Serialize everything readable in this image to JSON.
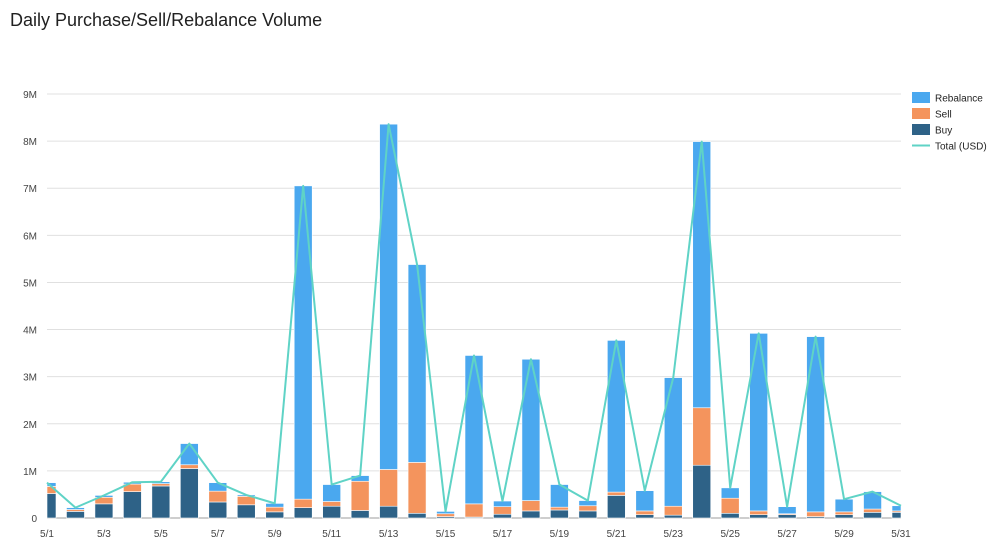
{
  "chart_data": {
    "type": "bar",
    "title": "Daily Purchase/Sell/Rebalance Volume",
    "xlabel": "",
    "ylabel": "",
    "stacked": true,
    "ylim": [
      0,
      9000000
    ],
    "y_ticks": [
      {
        "value": 0,
        "label": "0"
      },
      {
        "value": 1000000,
        "label": "1M"
      },
      {
        "value": 2000000,
        "label": "2M"
      },
      {
        "value": 3000000,
        "label": "3M"
      },
      {
        "value": 4000000,
        "label": "4M"
      },
      {
        "value": 5000000,
        "label": "5M"
      },
      {
        "value": 6000000,
        "label": "6M"
      },
      {
        "value": 7000000,
        "label": "7M"
      },
      {
        "value": 8000000,
        "label": "8M"
      },
      {
        "value": 9000000,
        "label": "9M"
      }
    ],
    "categories": [
      "5/1",
      "5/2",
      "5/3",
      "5/4",
      "5/5",
      "5/6",
      "5/7",
      "5/8",
      "5/9",
      "5/10",
      "5/11",
      "5/12",
      "5/13",
      "5/14",
      "5/15",
      "5/16",
      "5/17",
      "5/18",
      "5/19",
      "5/20",
      "5/21",
      "5/22",
      "5/23",
      "5/24",
      "5/25",
      "5/26",
      "5/27",
      "5/28",
      "5/29",
      "5/30",
      "5/31"
    ],
    "x_tick_labels": [
      "5/1",
      "5/3",
      "5/5",
      "5/7",
      "5/9",
      "5/11",
      "5/13",
      "5/15",
      "5/17",
      "5/19",
      "5/21",
      "5/23",
      "5/25",
      "5/27",
      "5/29",
      "5/31"
    ],
    "grid": true,
    "legend_position": "right",
    "series": [
      {
        "name": "Buy",
        "color": "#2e6287",
        "values": [
          520000,
          140000,
          300000,
          560000,
          680000,
          1050000,
          340000,
          280000,
          130000,
          220000,
          250000,
          160000,
          250000,
          100000,
          30000,
          20000,
          80000,
          150000,
          170000,
          150000,
          480000,
          70000,
          60000,
          1120000,
          100000,
          70000,
          70000,
          30000,
          70000,
          120000,
          120000
        ]
      },
      {
        "name": "Sell",
        "color": "#f4945d",
        "values": [
          150000,
          40000,
          140000,
          160000,
          50000,
          80000,
          230000,
          180000,
          100000,
          180000,
          100000,
          620000,
          780000,
          1080000,
          60000,
          280000,
          160000,
          220000,
          60000,
          110000,
          70000,
          80000,
          190000,
          1220000,
          320000,
          80000,
          20000,
          100000,
          60000,
          70000,
          30000
        ]
      },
      {
        "name": "Rebalance",
        "color": "#4aa8ef",
        "values": [
          80000,
          40000,
          40000,
          40000,
          40000,
          450000,
          180000,
          30000,
          80000,
          6650000,
          360000,
          120000,
          7330000,
          4200000,
          50000,
          3150000,
          120000,
          3000000,
          480000,
          110000,
          3220000,
          430000,
          2730000,
          5650000,
          220000,
          3770000,
          150000,
          3720000,
          270000,
          370000,
          110000
        ]
      },
      {
        "name": "Total (USD)",
        "color": "#5fd3c6",
        "type": "line",
        "values": [
          750000,
          220000,
          480000,
          760000,
          770000,
          1580000,
          750000,
          490000,
          310000,
          7050000,
          710000,
          900000,
          8360000,
          5380000,
          140000,
          3450000,
          360000,
          3370000,
          710000,
          370000,
          3770000,
          580000,
          2980000,
          7990000,
          640000,
          3920000,
          240000,
          3850000,
          400000,
          560000,
          260000
        ]
      }
    ],
    "legend_order": [
      "Rebalance",
      "Sell",
      "Buy",
      "Total (USD)"
    ]
  }
}
